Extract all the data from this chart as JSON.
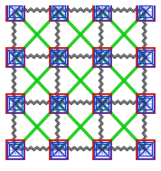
{
  "background": "#ffffff",
  "blue": "#1040dd",
  "red": "#dd1010",
  "green": "#10cc10",
  "dark": "#333333",
  "figsize": [
    1.78,
    1.89
  ],
  "dpi": 100,
  "unit": 0.27,
  "bs": 0.115,
  "ib": 0.075,
  "lw_red": 1.3,
  "lw_blue": 0.9,
  "lw_green": 0.85,
  "lw_black": 0.55
}
